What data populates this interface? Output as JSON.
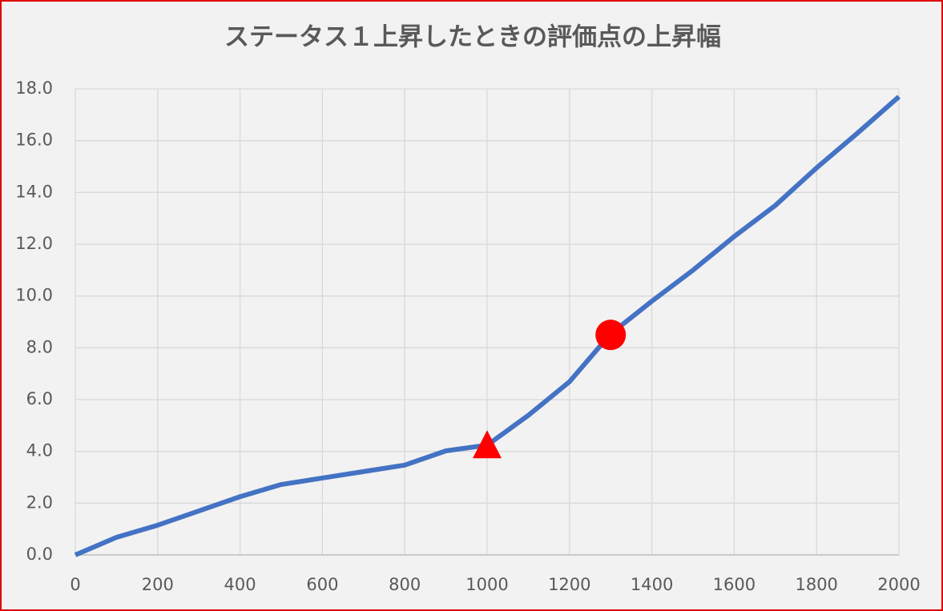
{
  "chart_data": {
    "type": "line",
    "title": "ステータス１上昇したときの評価点の上昇幅",
    "x": [
      0,
      100,
      200,
      300,
      400,
      500,
      600,
      700,
      800,
      900,
      1000,
      1100,
      1200,
      1300,
      1400,
      1500,
      1600,
      1700,
      1800,
      1900,
      2000
    ],
    "series": [
      {
        "color": "#4472c4",
        "values": [
          0,
          0.68,
          1.15,
          1.7,
          2.25,
          2.72,
          2.97,
          3.22,
          3.47,
          4.02,
          4.24,
          5.39,
          6.69,
          8.54,
          9.8,
          11.0,
          12.3,
          13.5,
          14.95,
          16.3,
          17.7
        ]
      }
    ],
    "markers": [
      {
        "x": 1000,
        "y": 4.2,
        "shape": "triangle",
        "color": "#ff0000"
      },
      {
        "x": 1300,
        "y": 8.5,
        "shape": "circle",
        "color": "#ff0000"
      }
    ],
    "xlim": [
      0,
      2000
    ],
    "xticks": [
      0,
      200,
      400,
      600,
      800,
      1000,
      1200,
      1400,
      1600,
      1800,
      2000
    ],
    "ylim": [
      0,
      18
    ],
    "yticks": [
      {
        "value": 0,
        "label": "0.0"
      },
      {
        "value": 2,
        "label": "2.0"
      },
      {
        "value": 4,
        "label": "4.0"
      },
      {
        "value": 6,
        "label": "6.0"
      },
      {
        "value": 8,
        "label": "8.0"
      },
      {
        "value": 10,
        "label": "10.0"
      },
      {
        "value": 12,
        "label": "12.0"
      },
      {
        "value": 14,
        "label": "14.0"
      },
      {
        "value": 16,
        "label": "16.0"
      },
      {
        "value": 18,
        "label": "18.0"
      }
    ],
    "grid": true
  }
}
